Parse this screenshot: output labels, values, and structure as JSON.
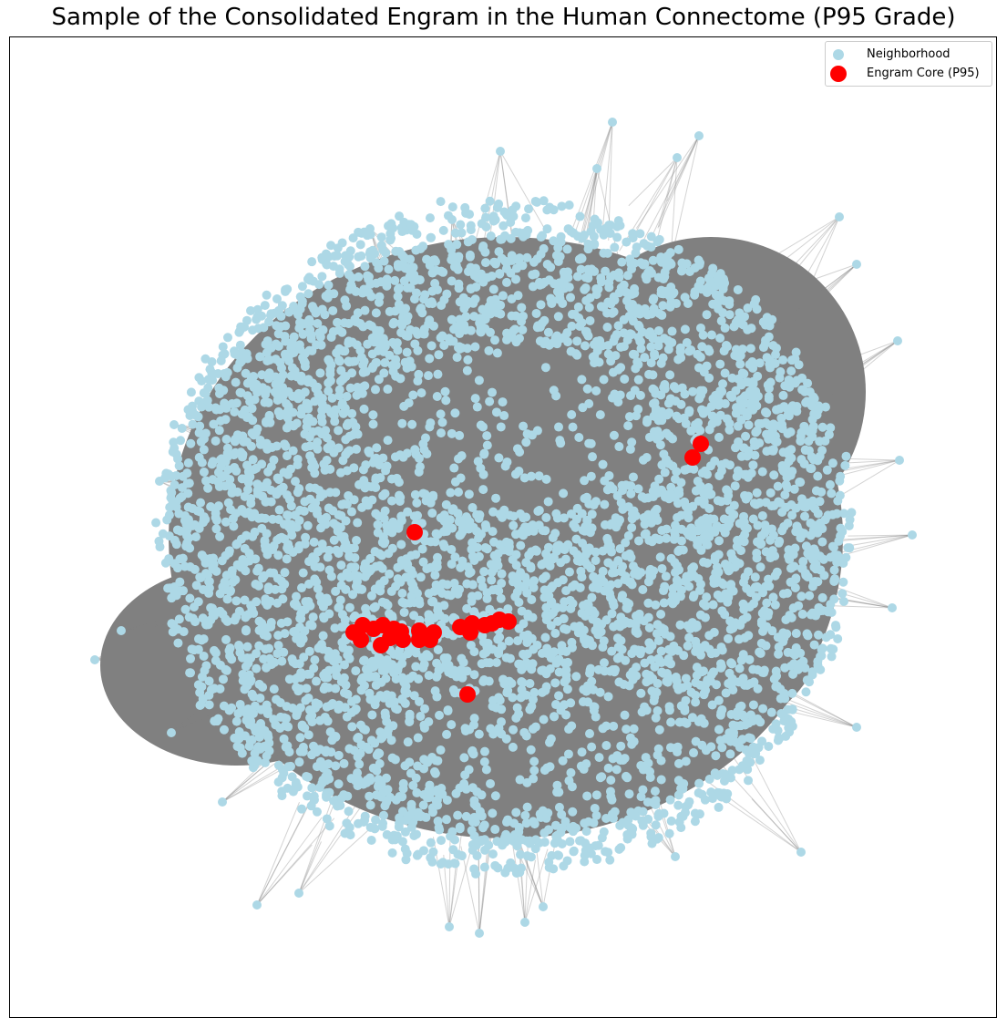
{
  "figure": {
    "title": "Sample of the Consolidated Engram in the Human Connectome (P95 Grade)"
  },
  "legend": {
    "items": [
      {
        "label": "Neighborhood",
        "color": "#add8e6"
      },
      {
        "label": "Engram Core (P95)",
        "color": "#ff0000"
      }
    ]
  },
  "colors": {
    "neighborhood_node": "#add8e6",
    "engram_core_node": "#ff0000",
    "edge": "#808080",
    "frame": "#000000"
  },
  "axes": {
    "ticks_visible": false,
    "grid": false,
    "legend_placement": "top-right"
  }
}
